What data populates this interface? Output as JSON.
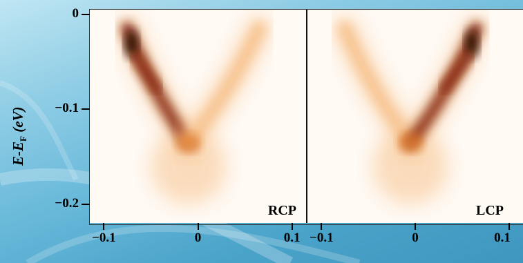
{
  "chart_data": {
    "type": "heatmap",
    "title": "",
    "ylabel": {
      "main": "E-E",
      "subscript": "F",
      "unit": "(eV)"
    },
    "xlabel": "",
    "ylim": [
      -0.22,
      0.005
    ],
    "yticks": [
      {
        "value": 0,
        "label": "0"
      },
      {
        "value": -0.1,
        "label": "−0.1"
      },
      {
        "value": -0.2,
        "label": "−0.2"
      }
    ],
    "xlim": [
      -0.115,
      0.115
    ],
    "xticks": [
      {
        "value": -0.1,
        "label": "−0.1"
      },
      {
        "value": 0,
        "label": "0"
      },
      {
        "value": 0.1,
        "label": "0.1"
      }
    ],
    "colormap": [
      "#fffaf4",
      "#f7c38e",
      "#e07a2a",
      "#8a2a10",
      "#2a0806"
    ],
    "panels": [
      {
        "label": "RCP",
        "dirac_point": {
          "k": -0.01,
          "E": -0.135
        },
        "left_branch_intensity": 1.0,
        "right_branch_intensity": 0.45,
        "branch_top": {
          "left_k": -0.075,
          "right_k": 0.065,
          "E": -0.015
        }
      },
      {
        "label": "LCP",
        "dirac_point": {
          "k": -0.005,
          "E": -0.135
        },
        "left_branch_intensity": 0.45,
        "right_branch_intensity": 1.0,
        "branch_top": {
          "left_k": -0.075,
          "right_k": 0.065,
          "E": -0.015
        }
      }
    ]
  }
}
